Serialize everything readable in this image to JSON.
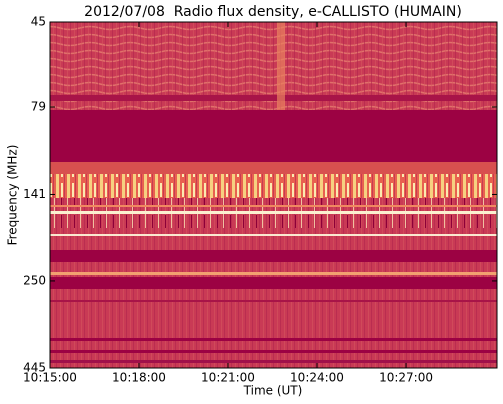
{
  "chart_data": {
    "type": "spectrogram",
    "title": "2012/07/08  Radio flux density, e-CALLISTO (HUMAIN)",
    "xlabel": "Time (UT)",
    "ylabel": "Frequency (MHz)",
    "xlim": [
      36900,
      37804
    ],
    "xticks": [
      {
        "value": 36900,
        "label": "10:15:00"
      },
      {
        "value": 37080,
        "label": "10:18:00"
      },
      {
        "value": 37260,
        "label": "10:21:00"
      },
      {
        "value": 37440,
        "label": "10:24:00"
      },
      {
        "value": 37620,
        "label": "10:27:00"
      }
    ],
    "ylim": [
      45,
      445
    ],
    "yscale": "log",
    "yinverted": true,
    "yticks": [
      45,
      79,
      141,
      250,
      445
    ]
  }
}
